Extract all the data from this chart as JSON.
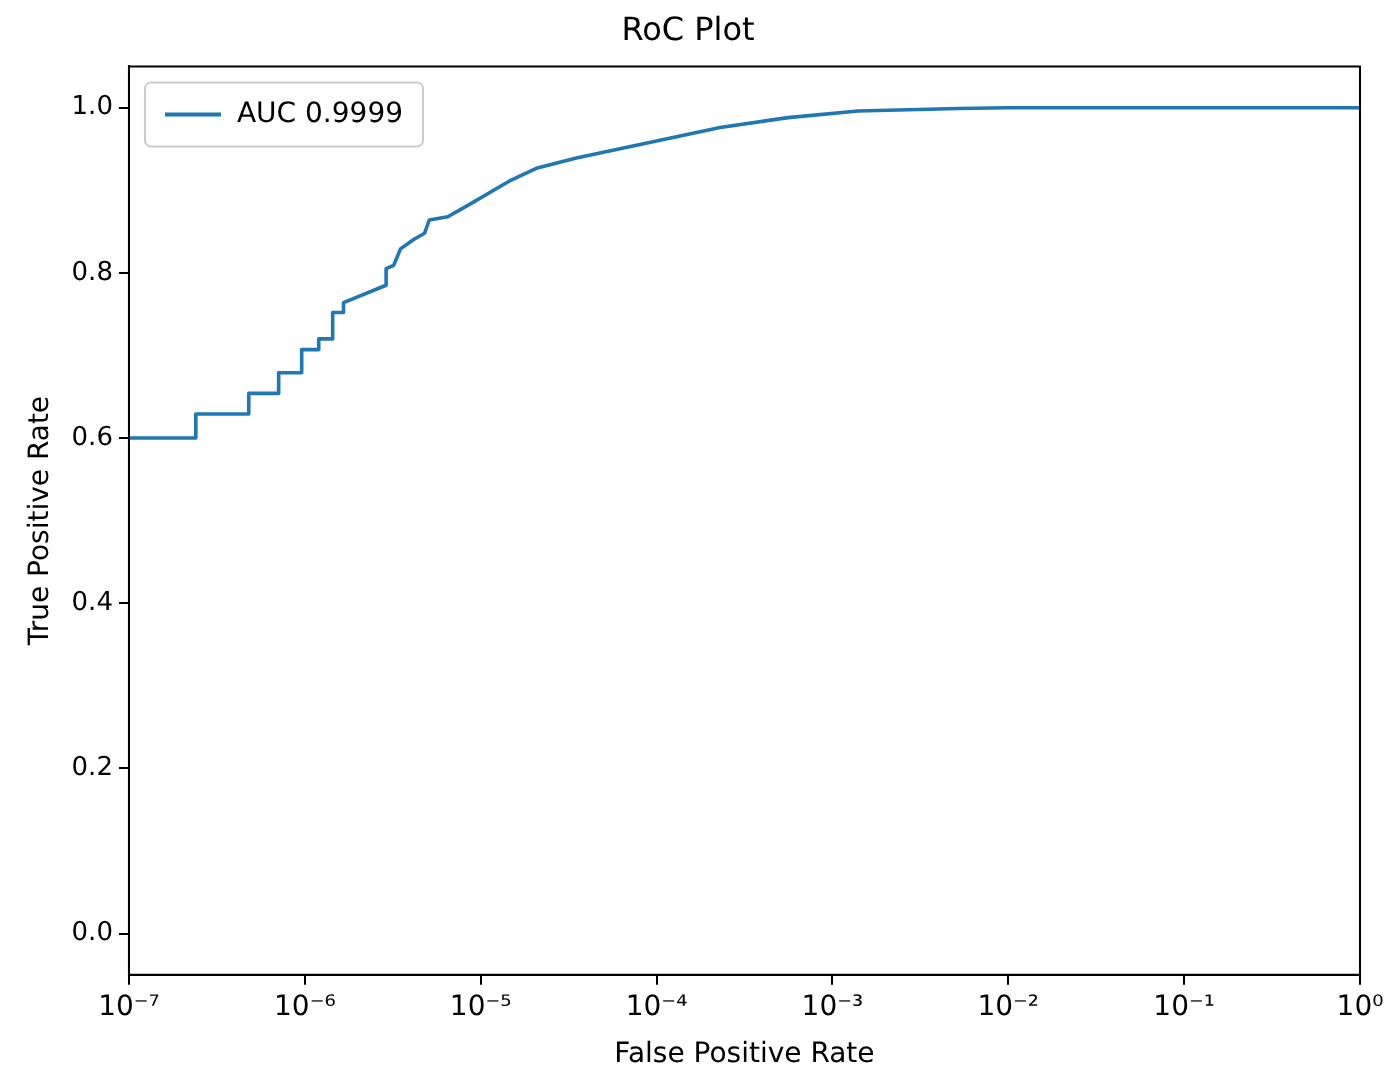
{
  "chart_data": {
    "type": "line",
    "title": "RoC Plot",
    "xlabel": "False Positive Rate",
    "ylabel": "True Positive Rate",
    "log": "x",
    "legend": "top left",
    "grid": false,
    "marker": "none",
    "line_style": "solid",
    "xlim": [
      1e-07,
      1
    ],
    "xticks": [
      {
        "value": 1e-07,
        "label": "10⁻⁷"
      },
      {
        "value": 1e-06,
        "label": "10⁻⁶"
      },
      {
        "value": 1e-05,
        "label": "10⁻⁵"
      },
      {
        "value": 0.0001,
        "label": "10⁻⁴"
      },
      {
        "value": 0.001,
        "label": "10⁻³"
      },
      {
        "value": 0.01,
        "label": "10⁻²"
      },
      {
        "value": 0.1,
        "label": "10⁻¹"
      },
      {
        "value": 1,
        "label": "10⁰"
      }
    ],
    "ylim": [
      -0.05,
      1.05
    ],
    "yticks": [
      {
        "value": 0,
        "label": "0.0"
      },
      {
        "value": 0.2,
        "label": "0.2"
      },
      {
        "value": 0.4,
        "label": "0.4"
      },
      {
        "value": 0.6,
        "label": "0.6"
      },
      {
        "value": 0.8,
        "label": "0.8"
      },
      {
        "value": 1,
        "label": "1.0"
      }
    ],
    "series": [
      {
        "name": "AUC 0.9999",
        "color": "#1f77b4",
        "x": [
          1e-07,
          2.4e-07,
          2.4e-07,
          4.8e-07,
          4.8e-07,
          7.1e-07,
          7.1e-07,
          9.6e-07,
          9.6e-07,
          1.2e-06,
          1.2e-06,
          1.44e-06,
          1.44e-06,
          1.66e-06,
          1.66e-06,
          2.9e-06,
          2.9e-06,
          3.2e-06,
          3.5e-06,
          4.2e-06,
          4.8e-06,
          5.1e-06,
          6.5e-06,
          8.5e-06,
          1.45e-05,
          2.1e-05,
          3.5e-05,
          8.7e-05,
          0.00023,
          0.00056,
          0.0014,
          0.0052,
          0.01,
          1
        ],
        "values": [
          0.6,
          0.6,
          0.629,
          0.629,
          0.654,
          0.654,
          0.679,
          0.679,
          0.707,
          0.707,
          0.72,
          0.72,
          0.752,
          0.752,
          0.764,
          0.785,
          0.805,
          0.809,
          0.829,
          0.841,
          0.848,
          0.864,
          0.868,
          0.882,
          0.911,
          0.927,
          0.939,
          0.957,
          0.976,
          0.988,
          0.996,
          0.999,
          1,
          1
        ]
      }
    ]
  }
}
